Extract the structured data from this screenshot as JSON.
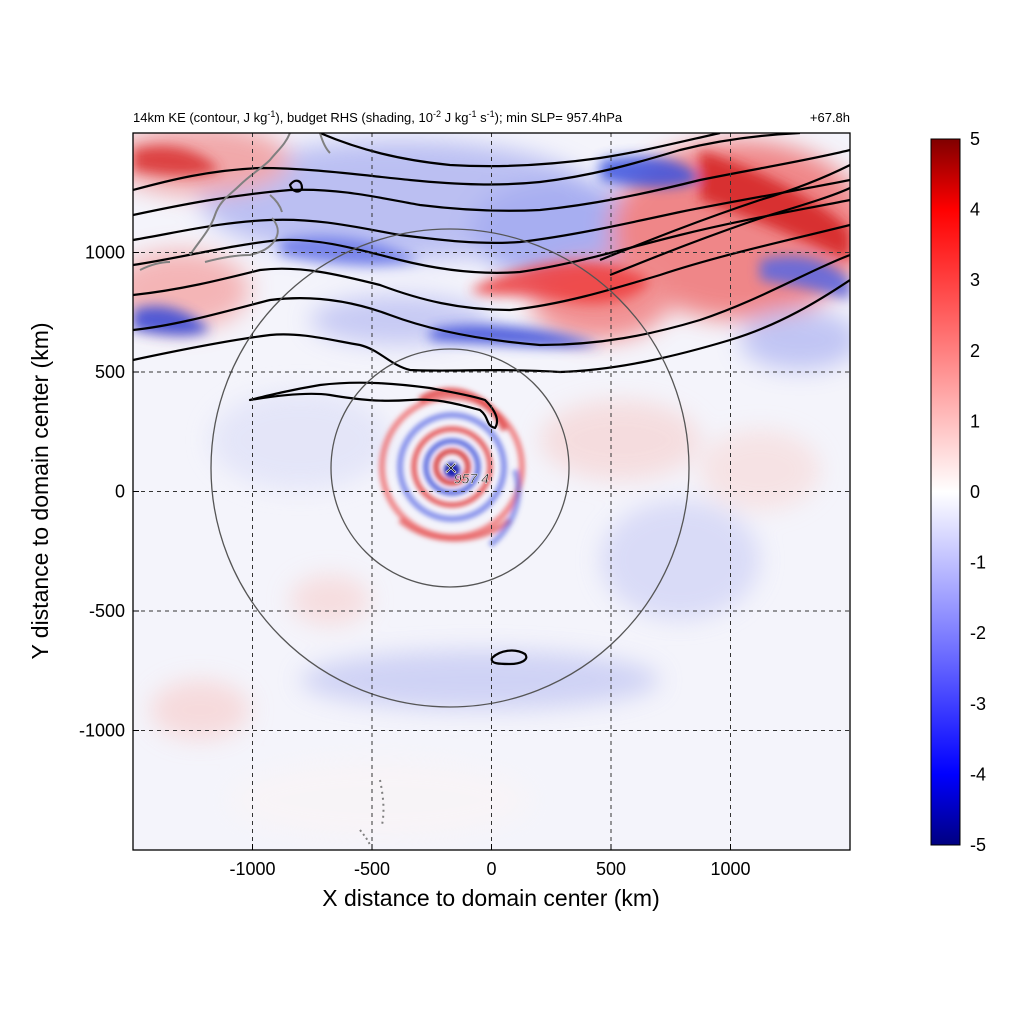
{
  "chart_data": {
    "type": "heatmap",
    "title_left": {
      "seg1": "14km KE (contour, J kg",
      "sup1": "-1",
      "seg2": "), budget RHS (shading, 10",
      "sup2": "-2",
      "seg3": " J kg",
      "sup3": "-1",
      "seg4": " s",
      "sup4": "-1",
      "seg5": "); min SLP= 957.4hPa"
    },
    "title_right": "+67.8h",
    "xlabel": "X distance to domain center (km)",
    "ylabel": "Y distance to domain center (km)",
    "xlim": [
      -1500,
      1500
    ],
    "ylim": [
      -1500,
      1500
    ],
    "xticks": [
      -1000,
      -500,
      0,
      500,
      1000
    ],
    "xtick_labels": [
      "-1000",
      "-500",
      "0",
      "500",
      "1000"
    ],
    "yticks": [
      -1000,
      -500,
      0,
      500,
      1000
    ],
    "ytick_labels": [
      "-1000",
      "-500",
      "0",
      "500",
      "1000"
    ],
    "grid": "dashed",
    "colorbar": {
      "min": -5,
      "max": 5,
      "ticks": [
        5,
        4,
        3,
        2,
        1,
        0,
        -1,
        -2,
        -3,
        -4,
        -5
      ],
      "tick_labels": [
        "5",
        "4",
        "3",
        "2",
        "1",
        "0",
        "-1",
        "-2",
        "-3",
        "-4",
        "-5"
      ],
      "colors": [
        "#000080",
        "#0000ff",
        "#ffffff",
        "#ff0000",
        "#800000"
      ]
    },
    "storm_center": {
      "x": -170,
      "y": 100,
      "marker": "×",
      "label": "957.4"
    },
    "range_rings_km": [
      500,
      1000
    ],
    "shading_description": "KE budget RHS shading: positive (red) bands in north and northeast jet region and spiral bands around storm; negative (blue) areas near storm core and north",
    "contour_color": "#000000",
    "coastline_color": "#808080"
  }
}
